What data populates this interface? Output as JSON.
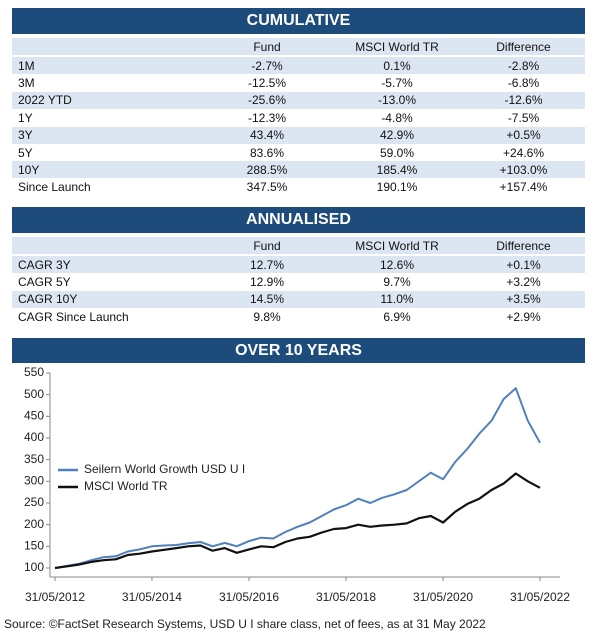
{
  "cumulative": {
    "title": "CUMULATIVE",
    "columns": [
      "Fund",
      "MSCI World TR",
      "Difference"
    ],
    "rows": [
      [
        "1M",
        "-2.7%",
        "0.1%",
        "-2.8%"
      ],
      [
        "3M",
        "-12.5%",
        "-5.7%",
        "-6.8%"
      ],
      [
        "2022 YTD",
        "-25.6%",
        "-13.0%",
        "-12.6%"
      ],
      [
        "1Y",
        "-12.3%",
        "-4.8%",
        "-7.5%"
      ],
      [
        "3Y",
        "43.4%",
        "42.9%",
        "+0.5%"
      ],
      [
        "5Y",
        "83.6%",
        "59.0%",
        "+24.6%"
      ],
      [
        "10Y",
        "288.5%",
        "185.4%",
        "+103.0%"
      ],
      [
        "Since Launch",
        "347.5%",
        "190.1%",
        "+157.4%"
      ]
    ]
  },
  "annualised": {
    "title": "ANNUALISED",
    "columns": [
      "Fund",
      "MSCI World TR",
      "Difference"
    ],
    "rows": [
      [
        "CAGR 3Y",
        "12.7%",
        "12.6%",
        "+0.1%"
      ],
      [
        "CAGR 5Y",
        "12.9%",
        "9.7%",
        "+3.2%"
      ],
      [
        "CAGR 10Y",
        "14.5%",
        "11.0%",
        "+3.5%"
      ],
      [
        "CAGR Since Launch",
        "9.8%",
        "6.9%",
        "+2.9%"
      ]
    ]
  },
  "chart_data": {
    "type": "line",
    "title": "OVER 10 YEARS",
    "x": [
      "31/05/2012",
      "31/08/2012",
      "30/11/2012",
      "28/02/2013",
      "31/05/2013",
      "31/08/2013",
      "30/11/2013",
      "28/02/2014",
      "31/05/2014",
      "31/08/2014",
      "30/11/2014",
      "28/02/2015",
      "31/05/2015",
      "31/08/2015",
      "30/11/2015",
      "29/02/2016",
      "31/05/2016",
      "31/08/2016",
      "30/11/2016",
      "28/02/2017",
      "31/05/2017",
      "31/08/2017",
      "30/11/2017",
      "28/02/2018",
      "31/05/2018",
      "31/08/2018",
      "30/11/2018",
      "28/02/2019",
      "31/05/2019",
      "31/08/2019",
      "30/11/2019",
      "29/02/2020",
      "31/05/2020",
      "31/08/2020",
      "30/11/2020",
      "28/02/2021",
      "31/05/2021",
      "31/08/2021",
      "30/11/2021",
      "28/02/2022",
      "31/05/2022"
    ],
    "series": [
      {
        "name": "Seilern World Growth USD U I",
        "color": "#4f81bd",
        "values": [
          100,
          105,
          110,
          118,
          125,
          127,
          138,
          143,
          150,
          152,
          153,
          157,
          160,
          150,
          158,
          150,
          162,
          170,
          168,
          183,
          195,
          205,
          220,
          235,
          245,
          260,
          250,
          262,
          270,
          280,
          300,
          320,
          305,
          345,
          375,
          410,
          440,
          490,
          515,
          440,
          389
        ]
      },
      {
        "name": "MSCI World TR",
        "color": "#111111",
        "values": [
          100,
          104,
          108,
          114,
          118,
          120,
          130,
          133,
          138,
          142,
          146,
          150,
          152,
          140,
          146,
          135,
          143,
          150,
          148,
          160,
          168,
          172,
          182,
          190,
          192,
          200,
          195,
          198,
          200,
          203,
          215,
          220,
          205,
          230,
          248,
          260,
          280,
          295,
          318,
          300,
          285
        ]
      }
    ],
    "xlim": [
      "31/05/2012",
      "31/05/2022"
    ],
    "xticks": [
      "31/05/2012",
      "31/05/2014",
      "31/05/2016",
      "31/05/2018",
      "31/05/2020",
      "31/05/2022"
    ],
    "ylim": [
      100,
      550
    ],
    "yticks": [
      100,
      150,
      200,
      250,
      300,
      350,
      400,
      450,
      500,
      550
    ],
    "grid": false,
    "legend": "center left"
  },
  "source": "Source: ©FactSet Research Systems, USD U I  share class, net of fees, as at 31 May 2022"
}
